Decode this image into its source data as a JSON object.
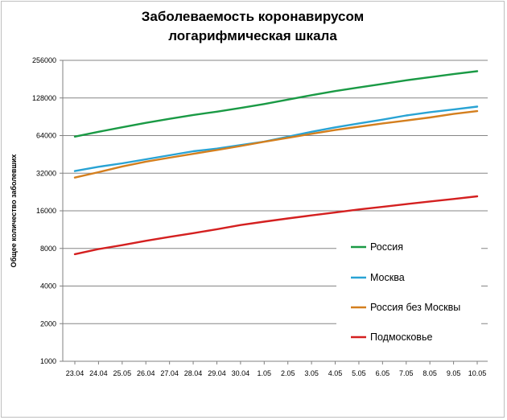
{
  "chart_data": {
    "type": "line",
    "title": [
      "Заболеваемость коронавирусом",
      "логарифмическая шкала"
    ],
    "ylabel": "Общее количество заболевших",
    "xlabel": "",
    "yscale": "log2",
    "ylim": [
      1000,
      256000
    ],
    "yticks": [
      1000,
      2000,
      4000,
      8000,
      16000,
      32000,
      64000,
      128000,
      256000
    ],
    "grid": true,
    "legend_position": "right-center",
    "categories": [
      "23.04",
      "24.04",
      "25.05",
      "26.04",
      "27.04",
      "28.04",
      "29.04",
      "30.04",
      "1.05",
      "2.05",
      "3.05",
      "4.05",
      "5.05",
      "6.05",
      "7.05",
      "8.05",
      "9.05",
      "10.05"
    ],
    "series": [
      {
        "name": "Россия",
        "color": "#1a9a45",
        "values": [
          62800,
          68600,
          74600,
          80900,
          87100,
          93600,
          99400,
          106500,
          114400,
          124100,
          134700,
          145300,
          155400,
          165900,
          177200,
          187900,
          198700,
          209700
        ]
      },
      {
        "name": "Москва",
        "color": "#29a3d4",
        "values": [
          33300,
          36000,
          38400,
          41300,
          44500,
          47900,
          50300,
          53700,
          57300,
          62700,
          68600,
          74400,
          80100,
          85900,
          92700,
          98500,
          103400,
          109200
        ]
      },
      {
        "name": "Россия без Москвы",
        "color": "#d47f1e",
        "values": [
          29500,
          32600,
          36200,
          39600,
          42600,
          45700,
          49100,
          52800,
          57100,
          61400,
          66100,
          70900,
          75300,
          80000,
          84500,
          89400,
          95300,
          100500
        ]
      },
      {
        "name": "Подмосковье",
        "color": "#d42020",
        "values": [
          7200,
          7900,
          8500,
          9200,
          9900,
          10600,
          11400,
          12300,
          13100,
          13900,
          14700,
          15500,
          16400,
          17200,
          18100,
          19000,
          19900,
          20900
        ]
      }
    ]
  }
}
